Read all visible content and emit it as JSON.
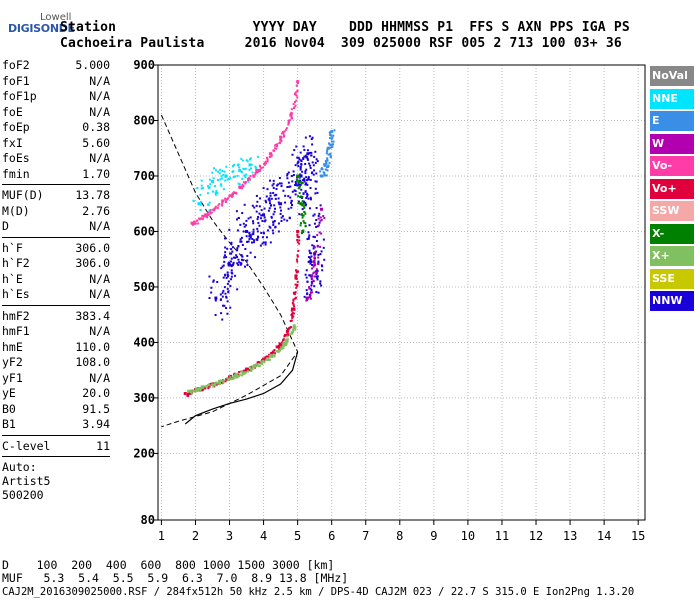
{
  "header": {
    "logo_top": "Lowell",
    "logo_main": "DIGISONDE",
    "line1": "Station                 YYYY DAY    DDD HHMMSS P1  FFS S AXN PPS IGA PS",
    "line2": "Cachoeira Paulista     2016 Nov04  309 025000 RSF 005 2 713 100 03+ 36"
  },
  "params": [
    {
      "k": "foF2",
      "v": "5.000"
    },
    {
      "k": "foF1",
      "v": "N/A"
    },
    {
      "k": "foF1p",
      "v": "N/A"
    },
    {
      "k": "foE",
      "v": "N/A"
    },
    {
      "k": "foEp",
      "v": "0.38"
    },
    {
      "k": "fxI",
      "v": "5.60"
    },
    {
      "k": "foEs",
      "v": "N/A"
    },
    {
      "k": "fmin",
      "v": "1.70"
    }
  ],
  "params2": [
    {
      "k": "MUF(D)",
      "v": "13.78"
    },
    {
      "k": "M(D)",
      "v": "2.76"
    },
    {
      "k": "D",
      "v": "N/A"
    }
  ],
  "params3": [
    {
      "k": "h`F",
      "v": "306.0"
    },
    {
      "k": "h`F2",
      "v": "306.0"
    },
    {
      "k": "h`E",
      "v": "N/A"
    },
    {
      "k": "h`Es",
      "v": "N/A"
    }
  ],
  "params4": [
    {
      "k": "hmF2",
      "v": "383.4"
    },
    {
      "k": "hmF1",
      "v": "N/A"
    },
    {
      "k": "hmE",
      "v": "110.0"
    },
    {
      "k": "yF2",
      "v": "108.0"
    },
    {
      "k": "yF1",
      "v": "N/A"
    },
    {
      "k": "yE",
      "v": "20.0"
    },
    {
      "k": "B0",
      "v": "91.5"
    },
    {
      "k": "B1",
      "v": "3.94"
    }
  ],
  "clevel": {
    "k": "C-level",
    "v": "11"
  },
  "auto_lines": [
    "Auto:",
    "Artist5",
    "500200"
  ],
  "legend": [
    {
      "label": "NoVal",
      "color": "#888888"
    },
    {
      "label": "NNE",
      "color": "#00e5ff"
    },
    {
      "label": "E",
      "color": "#3a8ee6"
    },
    {
      "label": "W",
      "color": "#b000b0"
    },
    {
      "label": "Vo-",
      "color": "#ff3ca8"
    },
    {
      "label": "Vo+",
      "color": "#e0003c"
    },
    {
      "label": "SSW",
      "color": "#f4a8a8"
    },
    {
      "label": "X-",
      "color": "#008000"
    },
    {
      "label": "X+",
      "color": "#80c060"
    },
    {
      "label": "SSE",
      "color": "#c8c800"
    },
    {
      "label": "NNW",
      "color": "#1a00d8"
    }
  ],
  "bottom": {
    "d_row": "D    100  200  400  600  800 1000 1500 3000 [km]",
    "muf_row": "MUF   5.3  5.4  5.5  5.9  6.3  7.0  8.9 13.8 [MHz]",
    "footer": "CAJ2M_2016309025000.RSF / 284fx512h 50 kHz 2.5 km / DPS-4D CAJ2M 023 / 22.7 S 315.0 E Ion2Png 1.3.20"
  },
  "chart_data": {
    "type": "scatter",
    "x_ticks": [
      1,
      2,
      3,
      4,
      5,
      6,
      7,
      8,
      9,
      10,
      11,
      12,
      13,
      14,
      15
    ],
    "y_ticks": [
      80,
      200,
      300,
      400,
      500,
      600,
      700,
      800,
      900
    ],
    "xlim": [
      0.9,
      15.2
    ],
    "ylim": [
      80,
      900
    ],
    "grid": true,
    "legend_position": "right",
    "series": [
      {
        "name": "Vo+",
        "points": [
          [
            1.7,
            308
          ],
          [
            2.0,
            315
          ],
          [
            2.5,
            325
          ],
          [
            3.0,
            338
          ],
          [
            3.5,
            352
          ],
          [
            4.0,
            370
          ],
          [
            4.4,
            392
          ],
          [
            4.7,
            420
          ],
          [
            4.85,
            460
          ],
          [
            4.95,
            520
          ],
          [
            5.0,
            600
          ]
        ]
      },
      {
        "name": "X+",
        "points": [
          [
            1.8,
            312
          ],
          [
            2.2,
            320
          ],
          [
            2.7,
            330
          ],
          [
            3.2,
            342
          ],
          [
            3.7,
            356
          ],
          [
            4.2,
            375
          ],
          [
            4.6,
            398
          ],
          [
            4.9,
            430
          ]
        ]
      },
      {
        "name": "Vo-",
        "points": [
          [
            1.9,
            615
          ],
          [
            2.3,
            630
          ],
          [
            2.8,
            655
          ],
          [
            3.3,
            680
          ],
          [
            3.8,
            710
          ],
          [
            4.2,
            740
          ],
          [
            4.5,
            770
          ],
          [
            4.8,
            810
          ],
          [
            5.0,
            870
          ]
        ]
      },
      {
        "name": "NNE",
        "points": [
          [
            2.1,
            650
          ],
          [
            2.5,
            690
          ],
          [
            2.9,
            700
          ],
          [
            3.3,
            710
          ],
          [
            3.6,
            720
          ]
        ]
      },
      {
        "name": "E",
        "points": [
          [
            5.7,
            700
          ],
          [
            5.8,
            720
          ],
          [
            5.9,
            750
          ],
          [
            6.0,
            780
          ]
        ]
      },
      {
        "name": "NNW",
        "points": [
          [
            2.6,
            480
          ],
          [
            3.0,
            540
          ],
          [
            3.5,
            600
          ],
          [
            4.0,
            630
          ],
          [
            4.5,
            650
          ],
          [
            5.1,
            700
          ],
          [
            5.3,
            740
          ],
          [
            5.5,
            560
          ],
          [
            5.4,
            520
          ]
        ]
      },
      {
        "name": "W",
        "points": [
          [
            5.3,
            480
          ],
          [
            5.5,
            540
          ],
          [
            5.7,
            640
          ]
        ]
      },
      {
        "name": "X-",
        "points": [
          [
            5.0,
            700
          ],
          [
            5.1,
            650
          ],
          [
            5.15,
            600
          ]
        ]
      }
    ],
    "profile_curve": [
      [
        1.7,
        253
      ],
      [
        2.0,
        268
      ],
      [
        2.5,
        280
      ],
      [
        3.0,
        290
      ],
      [
        3.5,
        298
      ],
      [
        4.0,
        308
      ],
      [
        4.5,
        325
      ],
      [
        4.85,
        350
      ],
      [
        5.0,
        383
      ]
    ],
    "dashed_curve": [
      [
        1.0,
        810
      ],
      [
        1.5,
        740
      ],
      [
        2.0,
        670
      ],
      [
        2.5,
        620
      ],
      [
        3.0,
        580
      ],
      [
        3.5,
        545
      ],
      [
        4.0,
        500
      ],
      [
        4.5,
        450
      ],
      [
        5.0,
        383
      ],
      [
        4.5,
        340
      ],
      [
        3.5,
        305
      ],
      [
        2.5,
        275
      ],
      [
        1.5,
        258
      ],
      [
        1.0,
        248
      ]
    ]
  }
}
